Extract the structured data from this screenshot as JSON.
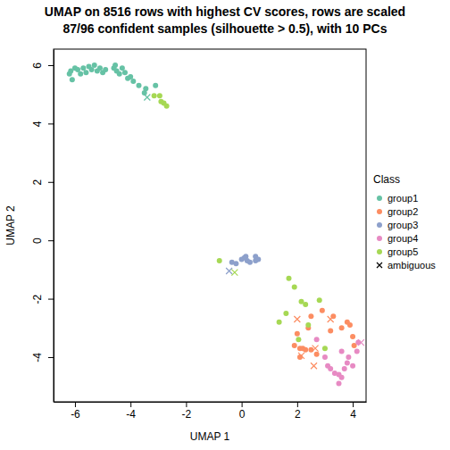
{
  "chart_data": {
    "type": "scatter",
    "title": "UMAP on 8516 rows with highest CV scores, rows are scaled",
    "subtitle": "87/96 confident samples (silhouette > 0.5), with 10 PCs",
    "x_label": "UMAP 1",
    "y_label": "UMAP 2",
    "legend_title": "Class",
    "legend": "right",
    "xlim": [
      -6.77,
      4.48
    ],
    "ylim": [
      -5.53,
      6.55
    ],
    "xticks": [
      -6,
      -4,
      -2,
      0,
      2,
      4
    ],
    "yticks": [
      -4,
      -2,
      0,
      2,
      4,
      6
    ],
    "series": [
      {
        "name": "group1",
        "color": "#66C2A5",
        "marker": "circle",
        "x": [
          -6.2,
          -6.1,
          -6.15,
          -6.0,
          -5.9,
          -5.8,
          -5.7,
          -5.6,
          -5.5,
          -5.4,
          -5.3,
          -5.2,
          -5.1,
          -5.0,
          -4.9,
          -4.6,
          -4.55,
          -4.5,
          -4.4,
          -4.3,
          -4.2,
          -4.1,
          -4.0,
          -3.9,
          -3.7,
          -3.5,
          -3.45,
          -3.1
        ],
        "y": [
          5.7,
          5.5,
          5.8,
          5.9,
          5.85,
          5.7,
          5.9,
          5.75,
          5.95,
          5.85,
          6.0,
          5.8,
          5.9,
          5.75,
          5.85,
          5.9,
          6.0,
          5.8,
          5.7,
          5.9,
          5.75,
          5.55,
          5.6,
          5.45,
          5.3,
          5.05,
          5.2,
          5.3
        ]
      },
      {
        "name": "group2",
        "color": "#FC8D62",
        "marker": "circle",
        "x": [
          2.9,
          2.5,
          2.4,
          3.3,
          3.6,
          3.8,
          3.9,
          4.0,
          4.05,
          3.2,
          2.0,
          2.1,
          2.2,
          2.3,
          2.5,
          2.7,
          2.1,
          1.9
        ],
        "y": [
          -2.4,
          -2.6,
          -3.0,
          -2.6,
          -3.0,
          -2.8,
          -2.9,
          -3.3,
          -3.6,
          -3.1,
          -3.2,
          -3.7,
          -3.7,
          -3.75,
          -3.75,
          -3.9,
          -4.0,
          -3.6
        ]
      },
      {
        "name": "group3",
        "color": "#8DA0CB",
        "marker": "circle",
        "x": [
          -0.35,
          -0.2,
          0.0,
          0.1,
          0.15,
          0.2,
          0.3,
          0.5,
          0.5,
          0.6
        ],
        "y": [
          -0.75,
          -0.8,
          -0.65,
          -0.6,
          -0.55,
          -0.7,
          -0.75,
          -0.55,
          -0.7,
          -0.65
        ]
      },
      {
        "name": "group4",
        "color": "#E78AC3",
        "marker": "circle",
        "x": [
          2.7,
          3.0,
          3.1,
          3.2,
          3.35,
          3.5,
          3.5,
          3.6,
          3.7,
          3.8,
          3.85,
          4.0,
          4.15,
          4.2,
          3.6
        ],
        "y": [
          -3.4,
          -4.0,
          -4.3,
          -4.4,
          -4.55,
          -4.6,
          -4.9,
          -4.7,
          -4.4,
          -4.2,
          -4.0,
          -4.3,
          -3.8,
          -3.5,
          -3.8
        ]
      },
      {
        "name": "group5",
        "color": "#A6D854",
        "marker": "circle",
        "x": [
          -3.15,
          -2.95,
          -2.9,
          -2.8,
          -2.7,
          -0.8,
          1.7,
          1.9,
          2.15,
          2.3,
          1.6,
          1.35,
          2.8,
          2.05,
          3.0,
          2.4
        ],
        "y": [
          4.95,
          4.95,
          4.75,
          4.7,
          4.6,
          -0.7,
          -1.3,
          -1.6,
          -2.1,
          -2.2,
          -2.5,
          -2.8,
          -2.05,
          -3.4,
          -3.7,
          -2.9
        ]
      },
      {
        "name": "ambiguous",
        "color": "#000000",
        "marker": "x",
        "colors": [
          "#66C2A5",
          "#8DA0CB",
          "#A6D854",
          "#FC8D62",
          "#FC8D62",
          "#FC8D62",
          "#FC8D62",
          "#FC8D62",
          "#E78AC3"
        ],
        "x": [
          -3.4,
          -0.45,
          -0.25,
          2.0,
          2.15,
          2.65,
          2.6,
          3.2,
          4.3
        ],
        "y": [
          4.9,
          -1.05,
          -1.1,
          -2.7,
          -3.95,
          -3.7,
          -4.3,
          -2.7,
          -3.5
        ]
      }
    ]
  }
}
